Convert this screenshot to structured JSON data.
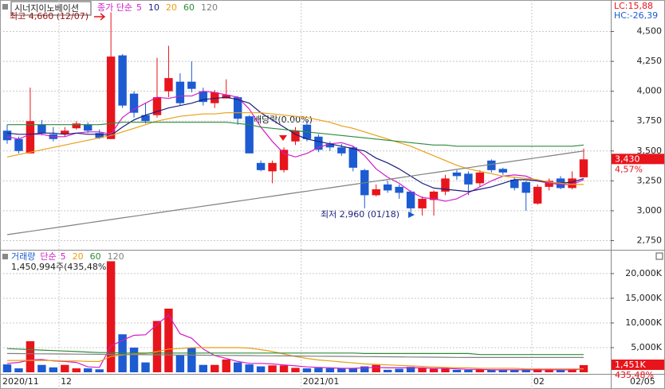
{
  "chart_data": [
    {
      "type": "candlestick",
      "title": "시너지이노베이션",
      "legend_label": "종가 단순",
      "up_color": "#e8141c",
      "down_color": "#1c5bd1",
      "open": [
        3670,
        3600,
        3480,
        3720,
        3640,
        3640,
        3690,
        3720,
        3650,
        3600,
        4300,
        3980,
        3800,
        3800,
        4000,
        4080,
        4080,
        4000,
        3900,
        3940,
        3950,
        3790,
        3400,
        3330,
        3340,
        3580,
        3720,
        3620,
        3560,
        3530,
        3530,
        3340,
        3130,
        3220,
        3200,
        3160,
        3020,
        3090,
        3160,
        3320,
        3310,
        3230,
        3420,
        3350,
        3260,
        3240,
        3060,
        3200,
        3270,
        3190,
        3280
      ],
      "high": [
        3720,
        3620,
        4030,
        3760,
        3700,
        3700,
        3750,
        3740,
        3680,
        4660,
        4310,
        4000,
        3900,
        4280,
        4380,
        4150,
        4250,
        4030,
        4010,
        4100,
        3960,
        3800,
        3420,
        3420,
        3530,
        3700,
        3750,
        3640,
        3580,
        3560,
        3540,
        3350,
        3220,
        3250,
        3220,
        3170,
        3120,
        3170,
        3300,
        3340,
        3330,
        3340,
        3430,
        3360,
        3280,
        3250,
        3220,
        3270,
        3290,
        3330,
        3520
      ],
      "low": [
        3560,
        3480,
        3480,
        3630,
        3580,
        3620,
        3680,
        3650,
        3600,
        3600,
        3860,
        3780,
        3730,
        3780,
        3950,
        3880,
        3990,
        3880,
        3860,
        3940,
        3720,
        3480,
        3330,
        3230,
        3320,
        3550,
        3580,
        3490,
        3500,
        3460,
        3330,
        3020,
        3120,
        3150,
        3100,
        2960,
        2960,
        2960,
        3130,
        3260,
        3130,
        3200,
        3320,
        3300,
        3170,
        3000,
        3050,
        3170,
        3180,
        3180,
        3280
      ],
      "close": [
        3590,
        3500,
        3750,
        3650,
        3600,
        3670,
        3730,
        3670,
        3610,
        4290,
        3880,
        3820,
        3750,
        3950,
        4110,
        3900,
        4020,
        3910,
        3990,
        3970,
        3770,
        3480,
        3340,
        3400,
        3510,
        3670,
        3600,
        3510,
        3530,
        3480,
        3360,
        3130,
        3180,
        3170,
        3150,
        3020,
        3100,
        3160,
        3270,
        3290,
        3220,
        3320,
        3340,
        3320,
        3190,
        3150,
        3200,
        3250,
        3190,
        3270,
        3430
      ],
      "series": [
        {
          "name": "5",
          "color": "#d21cc8",
          "values": [
            3620,
            3600,
            3640,
            3640,
            3620,
            3620,
            3650,
            3660,
            3660,
            3640,
            3780,
            3850,
            3900,
            3950,
            3940,
            3960,
            3960,
            4000,
            3990,
            3970,
            3950,
            3850,
            3700,
            3580,
            3480,
            3450,
            3480,
            3530,
            3560,
            3570,
            3540,
            3460,
            3350,
            3280,
            3230,
            3160,
            3110,
            3100,
            3080,
            3100,
            3150,
            3200,
            3250,
            3290,
            3300,
            3290,
            3250,
            3230,
            3220,
            3220,
            3260
          ]
        },
        {
          "name": "10",
          "color": "#1a1f7a",
          "values": [
            3650,
            3640,
            3640,
            3650,
            3650,
            3640,
            3650,
            3640,
            3640,
            3630,
            3700,
            3760,
            3800,
            3830,
            3860,
            3880,
            3900,
            3930,
            3940,
            3950,
            3930,
            3900,
            3820,
            3760,
            3700,
            3640,
            3600,
            3580,
            3560,
            3540,
            3520,
            3500,
            3440,
            3400,
            3350,
            3290,
            3230,
            3190,
            3180,
            3170,
            3160,
            3180,
            3200,
            3230,
            3260,
            3260,
            3250,
            3240,
            3230,
            3240,
            3270
          ]
        },
        {
          "name": "20",
          "color": "#e8a014",
          "values": [
            3450,
            3470,
            3490,
            3510,
            3530,
            3550,
            3570,
            3590,
            3610,
            3630,
            3660,
            3690,
            3720,
            3750,
            3770,
            3790,
            3800,
            3810,
            3810,
            3820,
            3820,
            3820,
            3820,
            3810,
            3800,
            3790,
            3780,
            3760,
            3740,
            3710,
            3690,
            3660,
            3630,
            3600,
            3570,
            3540,
            3500,
            3460,
            3420,
            3380,
            3350,
            3330,
            3310,
            3290,
            3280,
            3270,
            3260,
            3240,
            3230,
            3220,
            3220
          ]
        },
        {
          "name": "60",
          "color": "#2e8b3a",
          "values": [
            3720,
            3720,
            3720,
            3720,
            3720,
            3720,
            3720,
            3720,
            3720,
            3730,
            3740,
            3740,
            3740,
            3740,
            3740,
            3740,
            3740,
            3740,
            3740,
            3740,
            3730,
            3720,
            3700,
            3690,
            3680,
            3670,
            3660,
            3650,
            3640,
            3630,
            3620,
            3610,
            3600,
            3590,
            3580,
            3570,
            3560,
            3550,
            3550,
            3540,
            3540,
            3540,
            3540,
            3540,
            3540,
            3540,
            3540,
            3540,
            3540,
            3540,
            3550
          ]
        },
        {
          "name": "120",
          "color": "#808080",
          "values": [
            2800,
            2814,
            2828,
            2842,
            2856,
            2870,
            2884,
            2898,
            2912,
            2926,
            2940,
            2954,
            2968,
            2982,
            2996,
            3010,
            3024,
            3038,
            3052,
            3066,
            3080,
            3094,
            3108,
            3122,
            3136,
            3150,
            3164,
            3178,
            3192,
            3206,
            3220,
            3234,
            3248,
            3262,
            3276,
            3290,
            3304,
            3318,
            3332,
            3346,
            3360,
            3374,
            3388,
            3402,
            3416,
            3430,
            3444,
            3458,
            3472,
            3486,
            3500
          ]
        }
      ],
      "ylim": [
        2680,
        4750
      ],
      "yticks": [
        {
          "value": 2750,
          "label": "2,750"
        },
        {
          "value": 3000,
          "label": "3,000"
        },
        {
          "value": 3250,
          "label": "3,250"
        },
        {
          "value": 3500,
          "label": "3,500"
        },
        {
          "value": 3750,
          "label": "3,750"
        },
        {
          "value": 4000,
          "label": "4,000"
        },
        {
          "value": 4250,
          "label": "4,250"
        },
        {
          "value": 4500,
          "label": "4,500"
        }
      ],
      "grid": true,
      "lc_label": "LC:15,88",
      "hc_label": "HC:-26,39",
      "last_label": "3,430",
      "change_label": "4,57%",
      "annotations": [
        "최고 4,660 (12/07)",
        "최저 2,960 (01/18)",
        "배당락(0.00%)"
      ]
    },
    {
      "type": "bar",
      "title": "거래량",
      "legend_label": "단순",
      "info_label": "1,450,994주(435,48%)",
      "categories": [
        "2020/11",
        null,
        null,
        null,
        null,
        "12",
        null,
        null,
        null,
        null,
        null,
        null,
        null,
        null,
        null,
        null,
        null,
        null,
        null,
        null,
        null,
        null,
        null,
        null,
        null,
        null,
        "2021/01",
        null,
        null,
        null,
        null,
        null,
        null,
        null,
        null,
        null,
        null,
        null,
        null,
        null,
        null,
        null,
        null,
        null,
        null,
        null,
        "02",
        null,
        null,
        null,
        null
      ],
      "end_label": "02/05",
      "values": [
        1600,
        800,
        6300,
        1500,
        1000,
        1500,
        800,
        800,
        600,
        22500,
        7700,
        5000,
        2000,
        10400,
        12900,
        3500,
        5000,
        1500,
        1500,
        2600,
        2000,
        1600,
        1200,
        1400,
        1400,
        900,
        800,
        900,
        800,
        800,
        800,
        1200,
        1500,
        500,
        700,
        1100,
        800,
        700,
        800,
        500,
        500,
        600,
        500,
        400,
        500,
        600,
        700,
        600,
        400,
        600,
        1451
      ],
      "series": [
        {
          "name": "5",
          "color": "#d21cc8",
          "values": [
            1800,
            2000,
            2500,
            2600,
            2300,
            2200,
            2000,
            1100,
            1000,
            5300,
            6500,
            7500,
            7600,
            9700,
            11600,
            7800,
            6900,
            4700,
            3400,
            2800,
            2200,
            1800,
            1800,
            1700,
            1500,
            1300,
            1100,
            1000,
            900,
            800,
            800,
            900,
            1000,
            900,
            900,
            900,
            900,
            800,
            800,
            700,
            600,
            600,
            500,
            500,
            500,
            500,
            500,
            500,
            500,
            500,
            700
          ]
        },
        {
          "name": "20",
          "color": "#e8a014",
          "values": [
            2400,
            2400,
            2400,
            2400,
            2400,
            2300,
            2300,
            2200,
            2200,
            3200,
            3500,
            3700,
            3800,
            4200,
            4700,
            4800,
            5000,
            5000,
            5000,
            5000,
            5000,
            4900,
            4600,
            4200,
            3700,
            3200,
            2800,
            2500,
            2300,
            2100,
            1900,
            1700,
            1600,
            1500,
            1400,
            1300,
            1200,
            1100,
            1000,
            900,
            900,
            800,
            800,
            800,
            800,
            700,
            700,
            700,
            700,
            700,
            700
          ]
        },
        {
          "name": "60",
          "color": "#2e8b3a",
          "values": [
            4800,
            4700,
            4600,
            4500,
            4400,
            4300,
            4200,
            4100,
            4000,
            4000,
            3900,
            3900,
            3900,
            3900,
            3900,
            3900,
            3900,
            3900,
            3900,
            3900,
            3900,
            3900,
            3900,
            3900,
            3900,
            3900,
            3900,
            3900,
            3900,
            3900,
            3900,
            3800,
            3800,
            3800,
            3800,
            3800,
            3800,
            3800,
            3800,
            3800,
            3800,
            3600,
            3600,
            3600,
            3600,
            3600,
            3600,
            3600,
            3600,
            3600,
            3600
          ]
        },
        {
          "name": "120",
          "color": "#808080",
          "values": [
            3800,
            3780,
            3760,
            3740,
            3720,
            3700,
            3680,
            3660,
            3640,
            3620,
            3600,
            3580,
            3560,
            3540,
            3520,
            3500,
            3480,
            3460,
            3440,
            3420,
            3400,
            3380,
            3360,
            3340,
            3320,
            3300,
            3280,
            3260,
            3240,
            3220,
            3200,
            3180,
            3160,
            3140,
            3120,
            3100,
            3080,
            3060,
            3040,
            3020,
            3000,
            3000,
            3000,
            3000,
            3000,
            3000,
            3000,
            3000,
            3000,
            3000,
            3000
          ]
        }
      ],
      "ylim": [
        0,
        24500
      ],
      "yticks": [
        {
          "value": 5000,
          "label": "5,000K"
        },
        {
          "value": 10000,
          "label": "10,000K"
        },
        {
          "value": 15000,
          "label": "15,000K"
        },
        {
          "value": 20000,
          "label": "20,000K"
        }
      ],
      "grid": true,
      "last_label": "1,451K",
      "change_label": "435,48%"
    }
  ]
}
